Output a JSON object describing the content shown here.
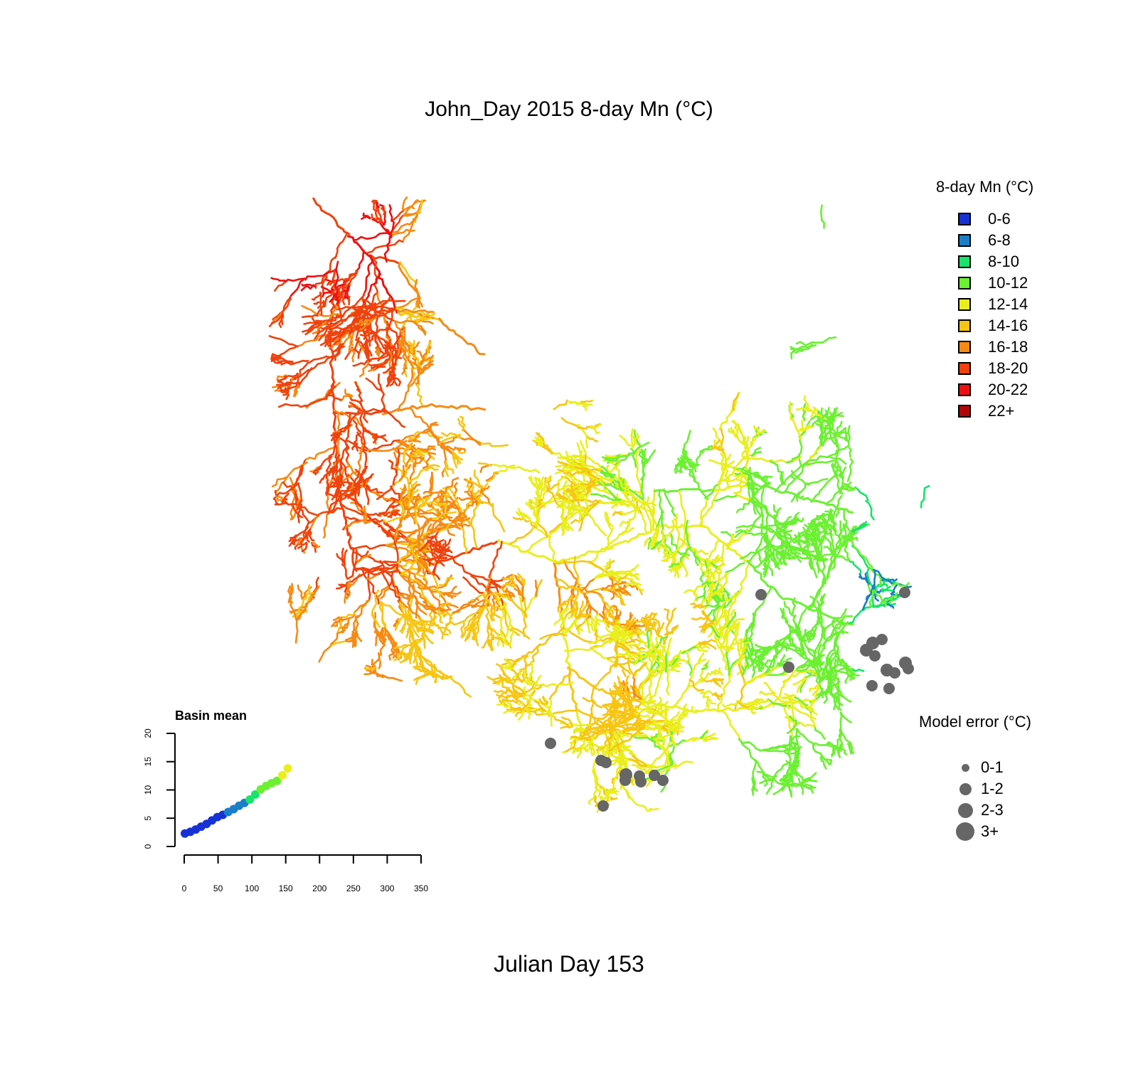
{
  "title": "John_Day 2015 8-day Mn (°C)",
  "footer": "Julian Day 153",
  "legend": {
    "title": "8-day Mn (°C)",
    "items": [
      {
        "label": "0-6",
        "color": "#1632d6"
      },
      {
        "label": "6-8",
        "color": "#1a7fc8"
      },
      {
        "label": "8-10",
        "color": "#18e36a"
      },
      {
        "label": "10-12",
        "color": "#6cf032"
      },
      {
        "label": "12-14",
        "color": "#e9ef1d"
      },
      {
        "label": "14-16",
        "color": "#f7c513"
      },
      {
        "label": "16-18",
        "color": "#f68a14"
      },
      {
        "label": "18-20",
        "color": "#f0420e"
      },
      {
        "label": "20-22",
        "color": "#ee1010"
      },
      {
        "label": "22+",
        "color": "#b30606"
      }
    ]
  },
  "error_legend": {
    "title": "Model error (°C)",
    "items": [
      {
        "label": "0-1",
        "size": 1
      },
      {
        "label": "1-2",
        "size": 2
      },
      {
        "label": "2-3",
        "size": 3
      },
      {
        "label": "3+",
        "size": 4
      }
    ],
    "marker_color": "#666666"
  },
  "chart_data": {
    "type": "scatter",
    "title": "Basin mean",
    "xlim": [
      0,
      350
    ],
    "ylim": [
      0,
      20
    ],
    "x_ticks": [
      "0",
      "50",
      "100",
      "150",
      "200",
      "250",
      "300",
      "350"
    ],
    "y_ticks": [
      "0",
      "5",
      "10",
      "15",
      "20"
    ],
    "x": [
      1,
      9,
      17,
      25,
      33,
      41,
      49,
      57,
      65,
      73,
      81,
      89,
      97,
      105,
      113,
      121,
      129,
      137,
      145,
      153
    ],
    "y": [
      2.3,
      2.6,
      3.0,
      3.5,
      4.0,
      4.6,
      5.2,
      5.6,
      6.1,
      6.6,
      7.2,
      7.7,
      8.3,
      9.2,
      10.1,
      10.7,
      11.2,
      11.6,
      12.6,
      13.8
    ]
  }
}
